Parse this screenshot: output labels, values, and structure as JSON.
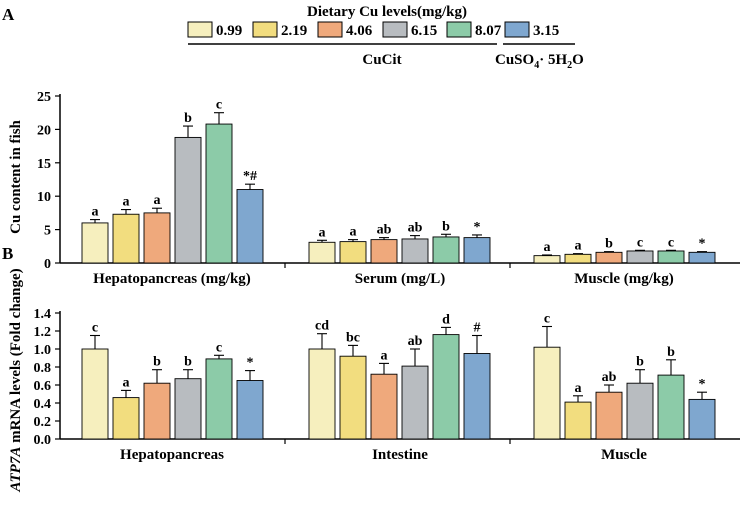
{
  "panel_labels": {
    "a": "A",
    "b": "B"
  },
  "legend": {
    "title": "Dietary Cu levels(mg/kg)",
    "items": [
      {
        "label": "0.99",
        "color": "#f6efbe"
      },
      {
        "label": "2.19",
        "color": "#f2dd7f"
      },
      {
        "label": "4.06",
        "color": "#efa97c"
      },
      {
        "label": "6.15",
        "color": "#b8bcc0"
      },
      {
        "label": "8.07",
        "color": "#8ccba8"
      },
      {
        "label": "3.15",
        "color": "#7fa7cf"
      }
    ],
    "group_cucit": "CuCit",
    "group_cuso4_main": "CuSO",
    "group_cuso4_sub1": "4",
    "group_cuso4_mid": "· 5H",
    "group_cuso4_sub2": "2",
    "group_cuso4_end": "O"
  },
  "chart_data": [
    {
      "type": "bar",
      "panel": "A",
      "ylabel": "Cu content in fish",
      "ylim": [
        0,
        25
      ],
      "yticks": [
        0,
        5,
        10,
        15,
        20,
        25
      ],
      "categories": [
        "Hepatopancreas (mg/kg)",
        "Serum (mg/L)",
        "Muscle (mg/kg)"
      ],
      "series_names": [
        "0.99",
        "2.19",
        "4.06",
        "6.15",
        "8.07",
        "3.15"
      ],
      "groups": [
        {
          "values": [
            6.0,
            7.3,
            7.5,
            18.8,
            20.8,
            11.0
          ],
          "errors": [
            0.5,
            0.7,
            0.7,
            1.7,
            1.7,
            0.8
          ],
          "labels": [
            "a",
            "a",
            "a",
            "b",
            "c",
            "*#"
          ]
        },
        {
          "values": [
            3.1,
            3.2,
            3.5,
            3.6,
            3.9,
            3.8
          ],
          "errors": [
            0.3,
            0.3,
            0.3,
            0.5,
            0.4,
            0.4
          ],
          "labels": [
            "a",
            "a",
            "ab",
            "ab",
            "b",
            "*"
          ]
        },
        {
          "values": [
            1.1,
            1.3,
            1.6,
            1.8,
            1.8,
            1.6
          ],
          "errors": [
            0.1,
            0.1,
            0.1,
            0.1,
            0.1,
            0.1
          ],
          "labels": [
            "a",
            "a",
            "b",
            "c",
            "c",
            "*"
          ]
        }
      ]
    },
    {
      "type": "bar",
      "panel": "B",
      "ylabel_italic": "ATP7A",
      "ylabel_rest": " mRNA levels (Fold change)",
      "ylim": [
        0,
        1.4
      ],
      "yticks": [
        0.0,
        0.2,
        0.4,
        0.6,
        0.8,
        1.0,
        1.2,
        1.4
      ],
      "ytick_labels": [
        "0.0",
        "0.2",
        "0.4",
        "0.6",
        "0.8",
        "1.0",
        "1.2",
        "1.4"
      ],
      "categories": [
        "Hepatopancreas",
        "Intestine",
        "Muscle"
      ],
      "series_names": [
        "0.99",
        "2.19",
        "4.06",
        "6.15",
        "8.07",
        "3.15"
      ],
      "groups": [
        {
          "values": [
            1.0,
            0.46,
            0.62,
            0.67,
            0.89,
            0.65
          ],
          "errors": [
            0.15,
            0.08,
            0.15,
            0.1,
            0.04,
            0.11
          ],
          "labels": [
            "c",
            "a",
            "b",
            "b",
            "c",
            "*"
          ]
        },
        {
          "values": [
            1.0,
            0.92,
            0.72,
            0.81,
            1.16,
            0.95
          ],
          "errors": [
            0.17,
            0.12,
            0.12,
            0.19,
            0.08,
            0.2
          ],
          "labels": [
            "cd",
            "bc",
            "a",
            "ab",
            "d",
            "#"
          ]
        },
        {
          "values": [
            1.02,
            0.41,
            0.52,
            0.62,
            0.71,
            0.44
          ],
          "errors": [
            0.23,
            0.07,
            0.08,
            0.15,
            0.17,
            0.08
          ],
          "labels": [
            "c",
            "a",
            "ab",
            "b",
            "b",
            "*"
          ]
        }
      ]
    }
  ]
}
